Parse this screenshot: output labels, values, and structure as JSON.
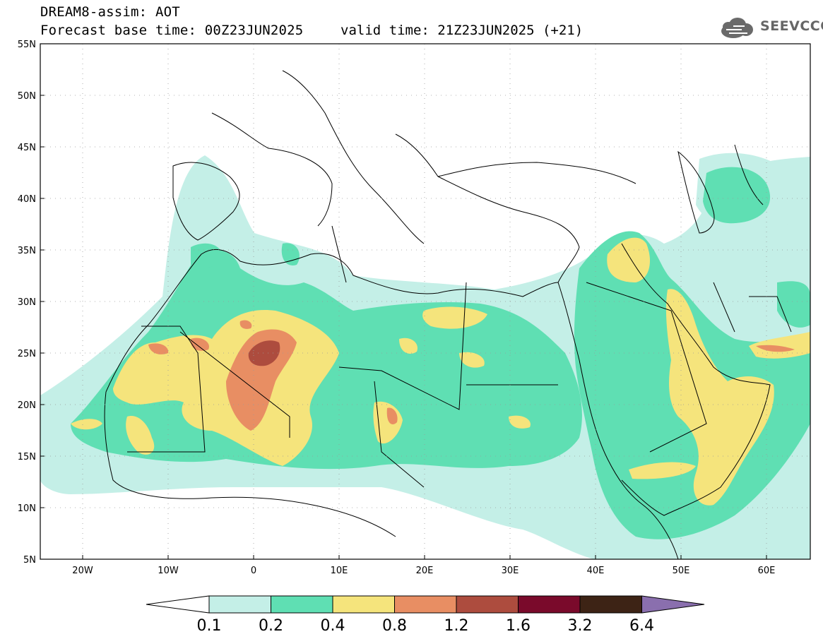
{
  "header": {
    "model_line": "DREAM8-assim: AOT",
    "base_time_line": "Forecast base time: 00Z23JUN2025",
    "valid_time_line": "valid time: 21Z23JUN2025 (+21)"
  },
  "logo": {
    "text": "SEEVCCC",
    "icon": "cloud-icon"
  },
  "map": {
    "lat_labels": [
      "55N",
      "50N",
      "45N",
      "40N",
      "35N",
      "30N",
      "25N",
      "20N",
      "15N",
      "10N",
      "5N"
    ],
    "lon_labels": [
      "20W",
      "10W",
      "0",
      "10E",
      "20E",
      "30E",
      "40E",
      "50E",
      "60E"
    ]
  },
  "colorbar": {
    "labels": [
      "0.1",
      "0.2",
      "0.4",
      "0.8",
      "1.2",
      "1.6",
      "3.2",
      "6.4"
    ],
    "colors": [
      "#ffffff",
      "#c4efe7",
      "#5fdfb3",
      "#f5e47c",
      "#e88e63",
      "#ad4c3e",
      "#7a0a2b",
      "#3d2315",
      "#8a6fae"
    ]
  },
  "palette": {
    "level1": "#c4efe7",
    "level2": "#5fdfb3",
    "level3": "#f5e47c",
    "level4": "#e88e63",
    "level5": "#ad4c3e"
  }
}
